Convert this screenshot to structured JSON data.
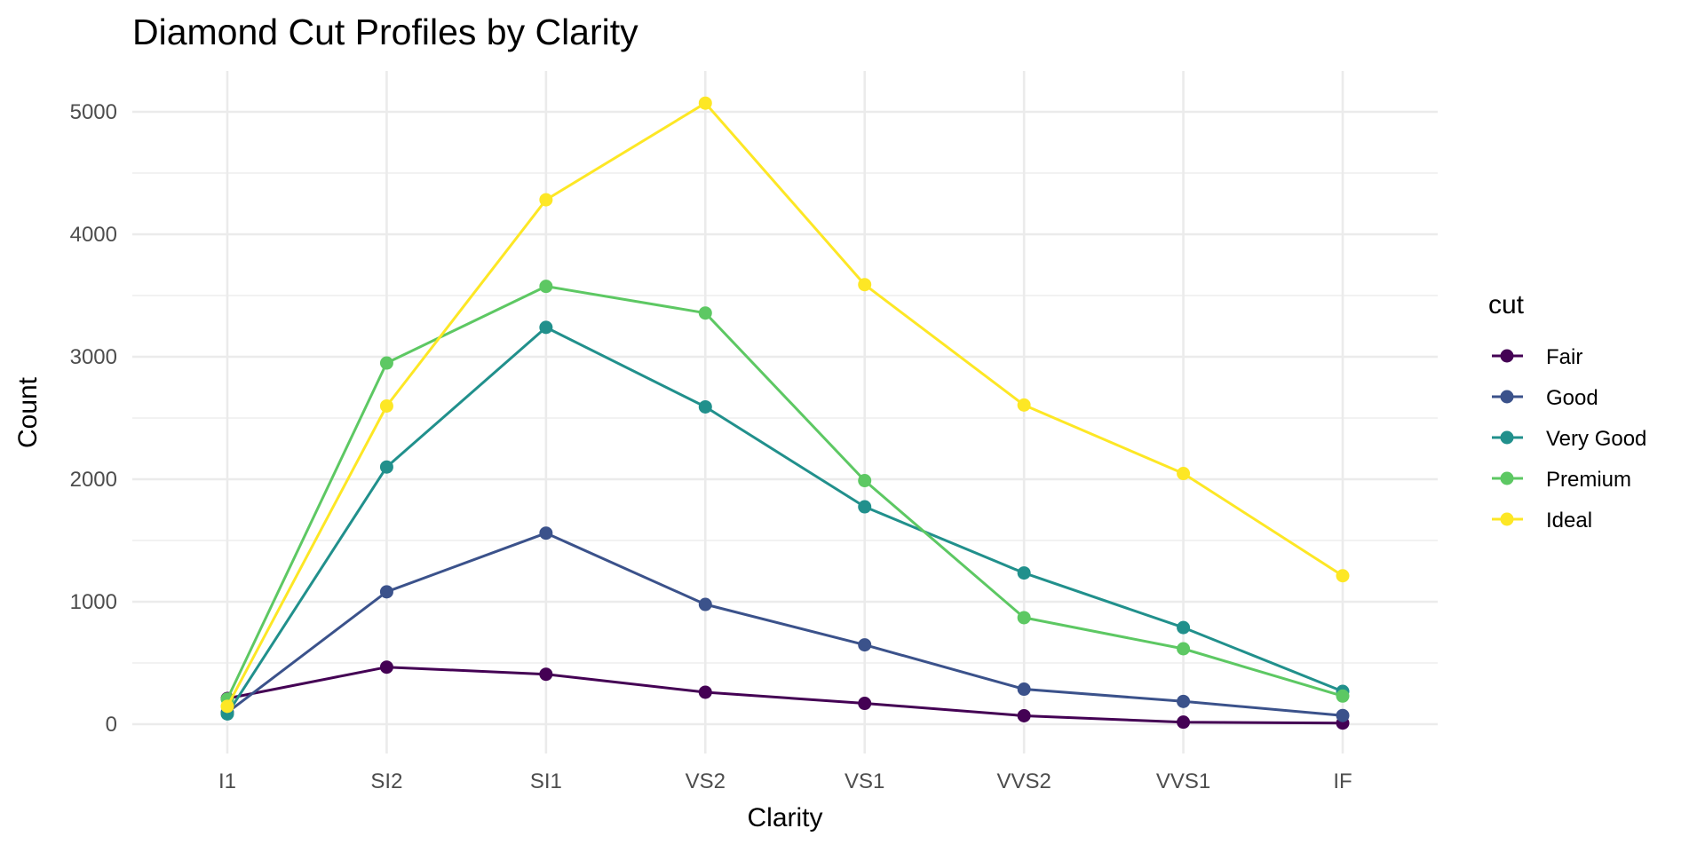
{
  "chart_data": {
    "type": "line",
    "title": "Diamond Cut Profiles by Clarity",
    "xlabel": "Clarity",
    "ylabel": "Count",
    "categories": [
      "I1",
      "SI2",
      "SI1",
      "VS2",
      "VS1",
      "VVS2",
      "VVS1",
      "IF"
    ],
    "ylim": [
      0,
      5300
    ],
    "yticks": [
      0,
      1000,
      2000,
      3000,
      4000,
      5000
    ],
    "ytick_labels": [
      "0",
      "1000",
      "2000",
      "3000",
      "4000",
      "5000"
    ],
    "grid": true,
    "legend": {
      "title": "cut",
      "position": "right"
    },
    "series": [
      {
        "name": "Fair",
        "color": "#440154",
        "values": [
          210,
          466,
          408,
          261,
          170,
          69,
          17,
          9
        ]
      },
      {
        "name": "Good",
        "color": "#3B528B",
        "values": [
          96,
          1081,
          1560,
          978,
          648,
          286,
          186,
          71
        ]
      },
      {
        "name": "Very Good",
        "color": "#21908C",
        "values": [
          84,
          2100,
          3240,
          2591,
          1775,
          1235,
          789,
          268
        ]
      },
      {
        "name": "Premium",
        "color": "#5DC863",
        "values": [
          205,
          2949,
          3575,
          3357,
          1989,
          870,
          616,
          230
        ]
      },
      {
        "name": "Ideal",
        "color": "#FDE725",
        "values": [
          146,
          2598,
          4282,
          5071,
          3589,
          2606,
          2047,
          1212
        ]
      }
    ]
  }
}
